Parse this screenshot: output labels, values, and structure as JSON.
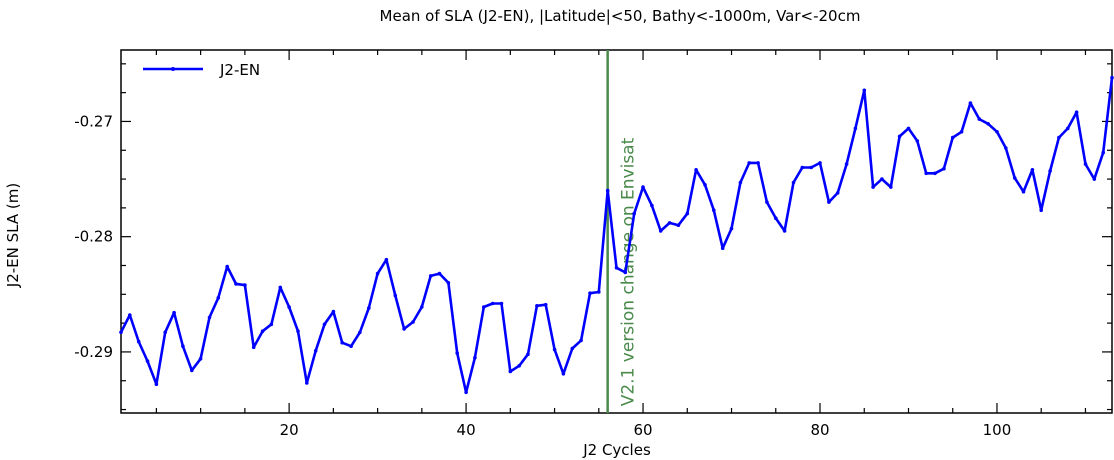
{
  "chart_data": {
    "type": "line",
    "title": "Mean of SLA (J2-EN), |Latitude|<50, Bathy<-1000m, Var<-20cm",
    "xlabel": "J2 Cycles",
    "ylabel": "J2-EN SLA (m)",
    "xlim": [
      1,
      113
    ],
    "ylim": [
      -0.2953,
      -0.2638
    ],
    "x_ticks": [
      20,
      40,
      60,
      80,
      100
    ],
    "y_ticks": [
      -0.29,
      -0.28,
      -0.27
    ],
    "x_tick_labels": [
      "20",
      "40",
      "60",
      "80",
      "100"
    ],
    "y_tick_labels": [
      "-0.29",
      "-0.28",
      "-0.27"
    ],
    "grid": false,
    "legend_position": "top-left",
    "series": [
      {
        "name": "J2-EN",
        "color": "#0000ff",
        "x": [
          1,
          2,
          3,
          4,
          5,
          6,
          7,
          8,
          9,
          10,
          11,
          12,
          13,
          14,
          15,
          16,
          17,
          18,
          19,
          20,
          21,
          22,
          23,
          24,
          25,
          26,
          27,
          28,
          29,
          30,
          31,
          32,
          33,
          34,
          35,
          36,
          37,
          38,
          39,
          40,
          41,
          42,
          43,
          44,
          45,
          46,
          47,
          48,
          49,
          50,
          51,
          52,
          53,
          54,
          55,
          56,
          57,
          58,
          59,
          60,
          61,
          62,
          63,
          64,
          65,
          66,
          67,
          68,
          69,
          70,
          71,
          72,
          73,
          74,
          75,
          76,
          77,
          78,
          79,
          80,
          81,
          82,
          83,
          84,
          85,
          86,
          87,
          88,
          89,
          90,
          91,
          92,
          93,
          94,
          95,
          96,
          97,
          98,
          99,
          100,
          101,
          102,
          103,
          104,
          105,
          106,
          107,
          108,
          109,
          110,
          111,
          112,
          113
        ],
        "y": [
          -0.2883,
          -0.2868,
          -0.2891,
          -0.2908,
          -0.2928,
          -0.2883,
          -0.2866,
          -0.2895,
          -0.2916,
          -0.2906,
          -0.287,
          -0.2853,
          -0.2826,
          -0.2841,
          -0.2842,
          -0.2896,
          -0.2882,
          -0.2876,
          -0.2844,
          -0.2861,
          -0.2882,
          -0.2927,
          -0.2899,
          -0.2876,
          -0.2865,
          -0.2892,
          -0.2895,
          -0.2883,
          -0.2862,
          -0.2832,
          -0.282,
          -0.2851,
          -0.288,
          -0.2874,
          -0.2861,
          -0.2834,
          -0.2832,
          -0.284,
          -0.2901,
          -0.2935,
          -0.2905,
          -0.2861,
          -0.2858,
          -0.2858,
          -0.2917,
          -0.2912,
          -0.2902,
          -0.286,
          -0.2859,
          -0.2898,
          -0.2919,
          -0.2897,
          -0.289,
          -0.2849,
          -0.2848,
          -0.276,
          -0.2827,
          -0.2831,
          -0.278,
          -0.2757,
          -0.2773,
          -0.2795,
          -0.2788,
          -0.279,
          -0.278,
          -0.2742,
          -0.2755,
          -0.2777,
          -0.281,
          -0.2793,
          -0.2753,
          -0.2736,
          -0.2736,
          -0.277,
          -0.2784,
          -0.2795,
          -0.2753,
          -0.274,
          -0.274,
          -0.2736,
          -0.277,
          -0.2762,
          -0.2737,
          -0.2706,
          -0.2673,
          -0.2757,
          -0.275,
          -0.2757,
          -0.2713,
          -0.2706,
          -0.2717,
          -0.2745,
          -0.2745,
          -0.2741,
          -0.2714,
          -0.2709,
          -0.2684,
          -0.2698,
          -0.2702,
          -0.2709,
          -0.2723,
          -0.2749,
          -0.2761,
          -0.2742,
          -0.2777,
          -0.2743,
          -0.2714,
          -0.2706,
          -0.2692,
          -0.2737,
          -0.275,
          -0.2727,
          -0.2662
        ]
      }
    ],
    "annotation": {
      "text": "V2.1 version change on Envisat",
      "x": 56,
      "color": "#4a8a4a"
    }
  }
}
